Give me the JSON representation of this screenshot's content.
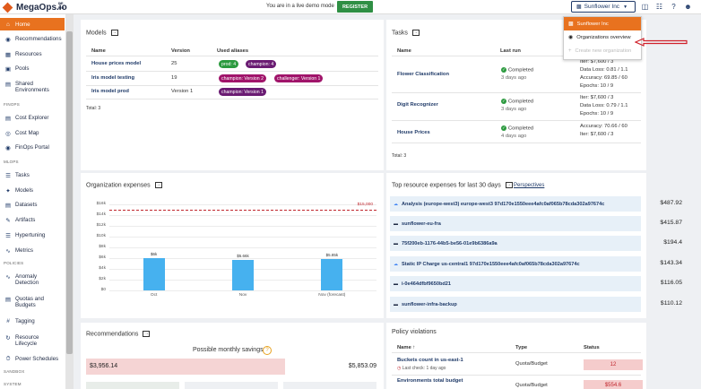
{
  "header": {
    "logo_text": "MegaOps.io",
    "logo_sup": "DE MO",
    "demo_text": "You are in a live demo mode",
    "register_label": "REGISTER",
    "org_selected": "Sunflower Inc"
  },
  "dropdown": {
    "items": [
      {
        "label": "Sunflower Inc"
      },
      {
        "label": "Organizations overview"
      },
      {
        "label": "Create new organization"
      }
    ]
  },
  "sidebar": {
    "items": [
      {
        "label": "Home",
        "icon": "home-icon"
      },
      {
        "label": "Recommendations",
        "icon": "recommendations-icon"
      },
      {
        "label": "Resources",
        "icon": "resources-icon"
      },
      {
        "label": "Pools",
        "icon": "pools-icon"
      },
      {
        "label": "Shared",
        "label2": "Environments",
        "icon": "environments-icon"
      },
      {
        "label": "Cost Explorer",
        "icon": "cost-explorer-icon"
      },
      {
        "label": "Cost Map",
        "icon": "cost-map-icon"
      },
      {
        "label": "FinOps Portal",
        "icon": "finops-portal-icon"
      },
      {
        "label": "Tasks",
        "icon": "tasks-icon"
      },
      {
        "label": "Models",
        "icon": "models-icon"
      },
      {
        "label": "Datasets",
        "icon": "datasets-icon"
      },
      {
        "label": "Artifacts",
        "icon": "artifacts-icon"
      },
      {
        "label": "Hypertuning",
        "icon": "hypertuning-icon"
      },
      {
        "label": "Metrics",
        "icon": "metrics-icon"
      },
      {
        "label": "Anomaly",
        "label2": "Detection",
        "icon": "anomaly-icon"
      },
      {
        "label": "Quotas and",
        "label2": "Budgets",
        "icon": "quotas-icon"
      },
      {
        "label": "Tagging",
        "icon": "tagging-icon"
      },
      {
        "label": "Resource",
        "label2": "Lifecycle",
        "icon": "lifecycle-icon"
      },
      {
        "label": "Power Schedules",
        "icon": "power-icon"
      }
    ],
    "sections": [
      "FINOPS",
      "MLOPS",
      "POLICIES",
      "SANDBOX",
      "SYSTEM"
    ]
  },
  "models": {
    "title": "Models",
    "headers": [
      "Name",
      "Version",
      "Used aliases"
    ],
    "rows": [
      {
        "name": "House prices model",
        "version": "25",
        "aliases": [
          "prod: 4",
          "champion: 4"
        ]
      },
      {
        "name": "Iris model testing",
        "version": "19",
        "aliases": [
          "champion: Version 2",
          "challenger: Version 1"
        ]
      },
      {
        "name": "Iris model prod",
        "version": "Version 1",
        "aliases": [
          "champion: Version 1"
        ]
      }
    ],
    "total": "Total: 3"
  },
  "tasks": {
    "title": "Tasks",
    "headers": [
      "Name",
      "Last run"
    ],
    "rows": [
      {
        "name": "Flower Classification",
        "status": "Completed",
        "ago": "3 days ago",
        "metrics": [
          "Iter: $7,600 / 3",
          "Data Loss: 0.81 / 1.1",
          "Accuracy: 69.85 / 60",
          "Epochs: 10 / 9"
        ]
      },
      {
        "name": "Digit Recognizer",
        "status": "Completed",
        "ago": "3 days ago",
        "metrics": [
          "Iter: $7,600 / 3",
          "Data Loss: 0.79 / 1.1",
          "Epochs: 10 / 9"
        ]
      },
      {
        "name": "House Prices",
        "status": "Completed",
        "ago": "4 days ago",
        "metrics": [
          "Accuracy: 70.66 / 60",
          "Iter: $7,600 / 3"
        ]
      }
    ],
    "total": "Total: 3"
  },
  "org_expenses": {
    "title": "Organization expenses",
    "limit_label": "$15,000",
    "bar_labels": [
      "$6k",
      "$5.66k",
      "$5.85k"
    ]
  },
  "chart_data": {
    "type": "bar",
    "categories": [
      "Oct",
      "Nov",
      "Nov (forecast)"
    ],
    "values": [
      6000,
      5660,
      5850
    ],
    "ylim": [
      0,
      16000
    ],
    "yticks": [
      "$0",
      "$2k",
      "$4k",
      "$6k",
      "$8k",
      "$10k",
      "$12k",
      "$14k",
      "$16k"
    ],
    "limit": 15000,
    "limit_label": "$15,000",
    "grid": true
  },
  "top_resources": {
    "title": "Top resource expenses for last 30 days",
    "perspectives_label": "Perspectives",
    "rows": [
      {
        "name": "Analysis (europe-west3) europe-west3 97d170e1550eee4afc0af065b78cda302a97674c",
        "cost": "$487.92",
        "icon": "gcp-icon"
      },
      {
        "name": "sunflower-eu-fra",
        "cost": "$415.87",
        "icon": "aws-icon"
      },
      {
        "name": "75f200eb-1176-44b5-be56-01e9b6386a9a",
        "cost": "$194.4",
        "icon": "azure-icon"
      },
      {
        "name": "Static IP Charge us-central1 97d170e1550eee4afc0af065b78cda302a97674c",
        "cost": "$143.34",
        "icon": "gcp-icon"
      },
      {
        "name": "i-0e464dfbf9650bd21",
        "cost": "$116.05",
        "icon": "aws-icon"
      },
      {
        "name": "sunflower-infra-backup",
        "cost": "$110.12",
        "icon": "aws-icon"
      }
    ]
  },
  "recommendations": {
    "title": "Recommendations",
    "savings_label": "Possible monthly savings",
    "left_value": "$3,956.14",
    "right_value": "$5,853.09"
  },
  "policy": {
    "title": "Policy violations",
    "headers": [
      "Name",
      "Type",
      "Status"
    ],
    "rows": [
      {
        "name": "Buckets count in us-east-1",
        "sub": "Last check: 1 day ago",
        "type": "Quota/Budget",
        "status": "12"
      },
      {
        "name": "Environments total budget",
        "sub": "",
        "type": "Quota/Budget",
        "status": "$554.6"
      }
    ]
  },
  "colors": {
    "accent": "#e8721f",
    "brand_navy": "#1f3a68",
    "green": "#2c9a3f",
    "bar": "#46b1ef",
    "alert": "#c0262d"
  }
}
